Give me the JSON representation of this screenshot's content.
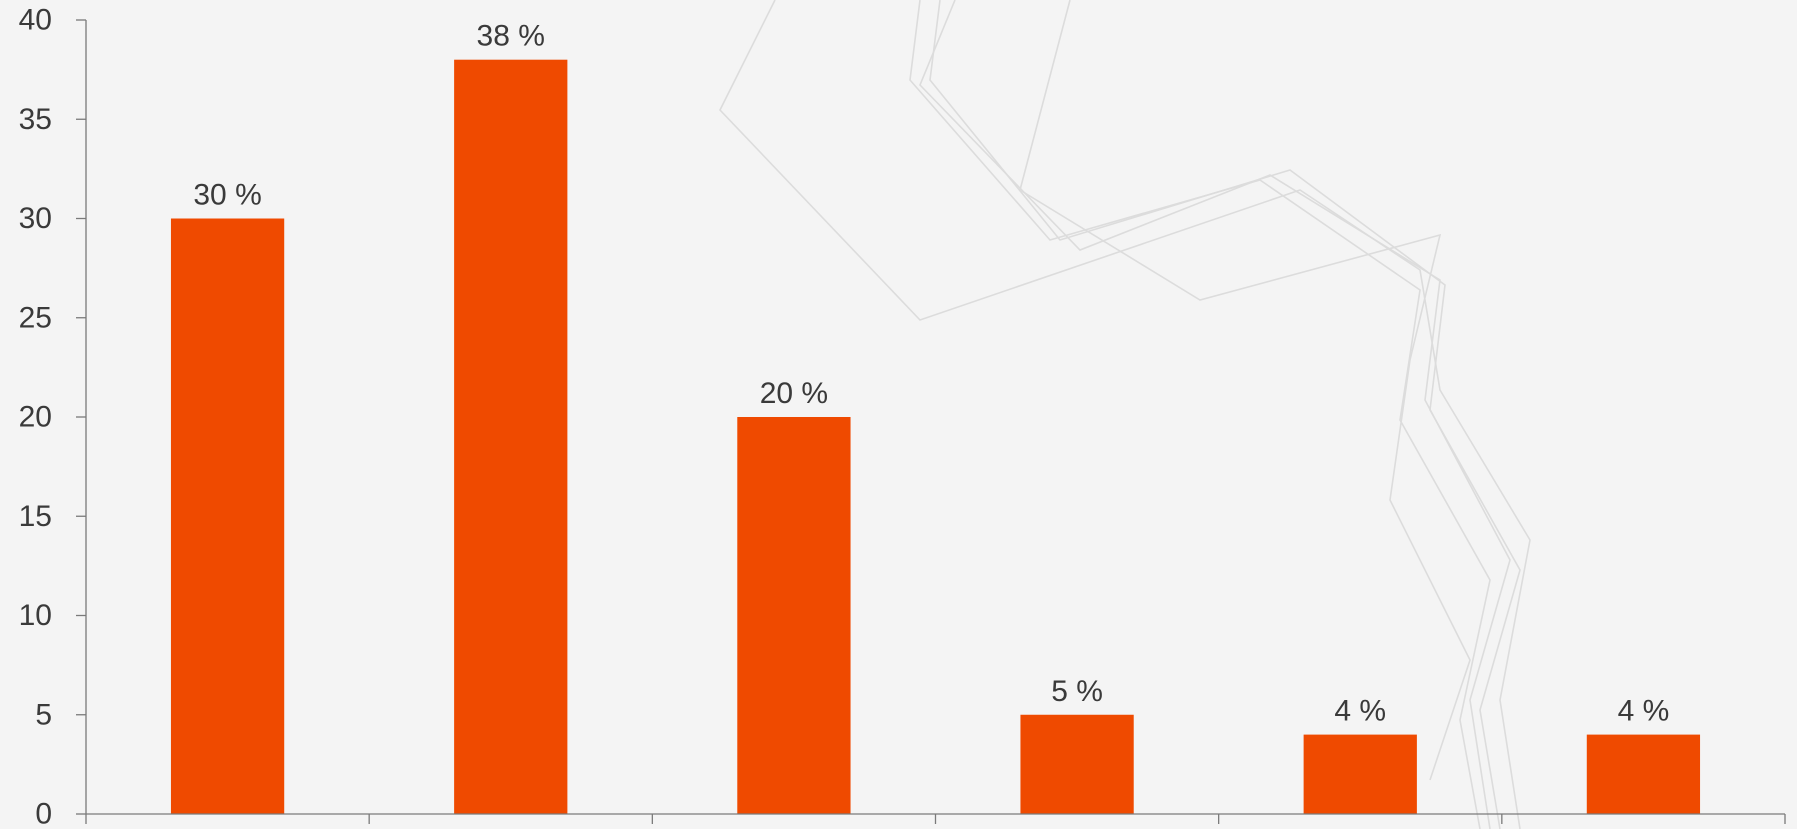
{
  "chart_data": {
    "type": "bar",
    "title": "",
    "xlabel": "",
    "ylabel": "",
    "categories": [
      "",
      "",
      "",
      "",
      "",
      ""
    ],
    "values": [
      30,
      38,
      20,
      5,
      4,
      4
    ],
    "data_labels": [
      "30 %",
      "38 %",
      "20 %",
      "5 %",
      "4 %",
      "4 %"
    ],
    "ylim": [
      0,
      40
    ],
    "yticks": [
      0,
      5,
      10,
      15,
      20,
      25,
      30,
      35,
      40
    ],
    "ytick_labels": [
      "0",
      "5",
      "10",
      "15",
      "20",
      "25",
      "30",
      "35",
      "40"
    ],
    "grid": false,
    "legend": "none"
  },
  "colors": {
    "bar": "#ef4a00",
    "background": "#f4f4f4",
    "axis": "#7a7a7a",
    "text": "#3a3a3a"
  }
}
